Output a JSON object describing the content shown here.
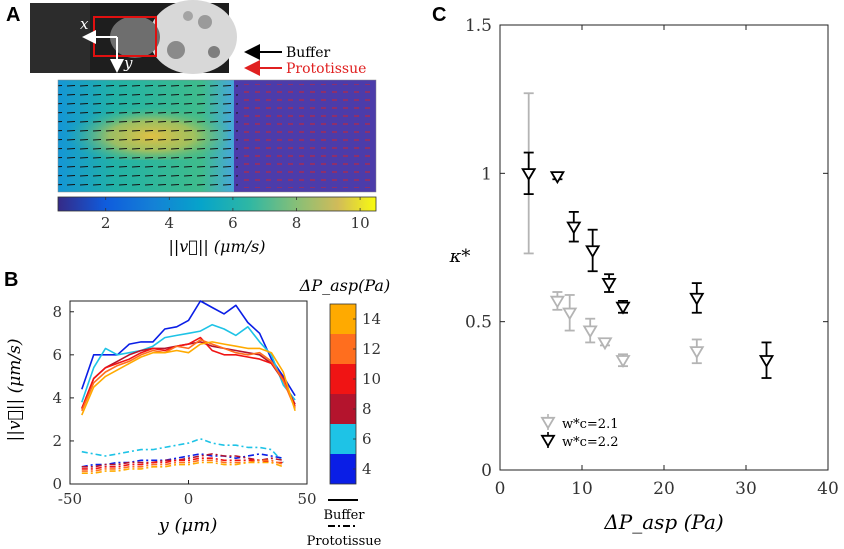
{
  "panels": {
    "a": "A",
    "b": "B",
    "c": "C"
  },
  "colors": {
    "black_marker": "#000000",
    "gray_marker": "#b4b4b4",
    "buffer_arrow": "#000000",
    "prototissue_arrow": "#e02020",
    "speed_4": "#0a1ee6",
    "speed_6": "#1ec3e6",
    "speed_8": "#b4142d",
    "speed_10": "#f01414",
    "speed_12": "#ff6e1e",
    "speed_14": "#ffaa00"
  },
  "panel_a": {
    "x_label": "x",
    "y_label": "y",
    "legend": {
      "buffer": "Buffer",
      "prototissue": "Prototissue"
    },
    "colorbar": {
      "ticks": [
        "2",
        "4",
        "6",
        "8",
        "10"
      ],
      "tick_values": [
        2,
        4,
        6,
        8,
        10
      ],
      "range": [
        0.5,
        10.5
      ],
      "label": "||v⃗|| (μm/s)"
    }
  },
  "panel_b": {
    "chart_data": {
      "type": "line",
      "title": "",
      "xlabel": "y (μm)",
      "ylabel": "||v⃗|| (μm/s)",
      "xlim": [
        -50,
        50
      ],
      "ylim": [
        0,
        8.5
      ],
      "xticks": [
        "-50",
        "0",
        "50"
      ],
      "xtick_values": [
        -50,
        0,
        50
      ],
      "yticks": [
        "0",
        "2",
        "4",
        "6",
        "8"
      ],
      "ytick_values": [
        0,
        2,
        4,
        6,
        8
      ],
      "colorbar": {
        "label": "ΔP_asp(Pa)",
        "ticks": [
          "4",
          "6",
          "8",
          "10",
          "12",
          "14"
        ],
        "tick_values": [
          4,
          6,
          8,
          10,
          12,
          14
        ],
        "range": [
          3,
          15
        ]
      },
      "legend": {
        "buffer": "Buffer",
        "prototissue": "Prototissue"
      },
      "x": [
        -45,
        -40,
        -35,
        -30,
        -25,
        -20,
        -15,
        -10,
        -5,
        0,
        5,
        10,
        15,
        20,
        25,
        30,
        35,
        40,
        45
      ],
      "series": [
        {
          "name": "Buffer 4 Pa",
          "dp": 4,
          "style": "solid",
          "color_key": "speed_4",
          "values": [
            4.4,
            6.0,
            6.0,
            6.0,
            6.5,
            6.6,
            6.6,
            7.2,
            7.3,
            7.6,
            8.5,
            8.2,
            7.9,
            8.3,
            7.5,
            7.0,
            5.8,
            5.0,
            4.1
          ]
        },
        {
          "name": "Buffer 6 Pa",
          "dp": 6,
          "style": "solid",
          "color_key": "speed_6",
          "values": [
            3.8,
            5.4,
            6.3,
            6.0,
            6.1,
            6.2,
            6.4,
            6.8,
            6.9,
            7.0,
            7.1,
            7.4,
            7.2,
            6.9,
            7.3,
            6.6,
            6.0,
            4.6,
            3.9
          ]
        },
        {
          "name": "Buffer 8 Pa",
          "dp": 8,
          "style": "solid",
          "color_key": "speed_8",
          "values": [
            3.5,
            4.9,
            5.4,
            5.7,
            6.0,
            6.2,
            6.3,
            6.3,
            6.4,
            6.5,
            6.6,
            6.4,
            6.3,
            6.2,
            6.1,
            6.0,
            5.6,
            4.8,
            3.7
          ]
        },
        {
          "name": "Buffer 10 Pa",
          "dp": 10,
          "style": "solid",
          "color_key": "speed_10",
          "values": [
            3.5,
            4.9,
            5.4,
            5.6,
            5.8,
            6.1,
            6.3,
            6.2,
            6.4,
            6.5,
            6.8,
            6.2,
            6.0,
            6.0,
            5.9,
            5.8,
            5.6,
            4.9,
            3.6
          ]
        },
        {
          "name": "Buffer 12 Pa",
          "dp": 12,
          "style": "solid",
          "color_key": "speed_12",
          "values": [
            3.4,
            4.7,
            5.2,
            5.5,
            5.7,
            6.0,
            6.2,
            6.1,
            6.4,
            6.3,
            6.7,
            6.5,
            6.3,
            6.1,
            6.0,
            6.1,
            5.7,
            4.8,
            3.5
          ]
        },
        {
          "name": "Buffer 14 Pa",
          "dp": 14,
          "style": "solid",
          "color_key": "speed_14",
          "values": [
            3.2,
            4.5,
            5.0,
            5.3,
            5.6,
            5.9,
            6.1,
            6.1,
            6.2,
            6.1,
            6.5,
            6.6,
            6.5,
            6.4,
            6.3,
            6.3,
            6.1,
            5.2,
            3.4
          ]
        },
        {
          "name": "Prototissue 4 Pa",
          "dp": 4,
          "style": "dashdot",
          "color_key": "speed_4",
          "values": [
            0.8,
            0.9,
            0.9,
            1.0,
            1.0,
            1.1,
            1.1,
            1.1,
            1.2,
            1.3,
            1.4,
            1.3,
            1.3,
            1.2,
            1.3,
            1.4,
            1.3,
            1.2,
            null
          ]
        },
        {
          "name": "Prototissue 6 Pa",
          "dp": 6,
          "style": "dashdot",
          "color_key": "speed_6",
          "values": [
            1.5,
            1.4,
            1.3,
            1.4,
            1.5,
            1.6,
            1.6,
            1.7,
            1.8,
            1.9,
            2.1,
            1.9,
            1.8,
            1.8,
            1.7,
            1.7,
            1.6,
            1.0,
            null
          ]
        },
        {
          "name": "Prototissue 8 Pa",
          "dp": 8,
          "style": "dashdot",
          "color_key": "speed_8",
          "values": [
            0.8,
            0.8,
            0.9,
            0.9,
            1.0,
            1.0,
            1.0,
            1.1,
            1.1,
            1.2,
            1.3,
            1.4,
            1.3,
            1.3,
            1.2,
            1.1,
            1.2,
            1.1,
            null
          ]
        },
        {
          "name": "Prototissue 10 Pa",
          "dp": 10,
          "style": "dashdot",
          "color_key": "speed_10",
          "values": [
            0.7,
            0.7,
            0.8,
            0.8,
            0.9,
            0.9,
            1.0,
            1.0,
            1.1,
            1.1,
            1.2,
            1.2,
            1.1,
            1.1,
            1.1,
            1.1,
            1.0,
            1.0,
            null
          ]
        },
        {
          "name": "Prototissue 12 Pa",
          "dp": 12,
          "style": "dashdot",
          "color_key": "speed_12",
          "values": [
            0.6,
            0.6,
            0.7,
            0.7,
            0.8,
            0.8,
            0.9,
            0.9,
            1.0,
            1.0,
            1.1,
            1.1,
            1.0,
            1.0,
            1.0,
            1.1,
            1.1,
            0.9,
            null
          ]
        },
        {
          "name": "Prototissue 14 Pa",
          "dp": 14,
          "style": "dashdot",
          "color_key": "speed_14",
          "values": [
            0.5,
            0.5,
            0.6,
            0.6,
            0.7,
            0.7,
            0.8,
            0.8,
            0.9,
            0.9,
            1.0,
            1.0,
            0.9,
            0.9,
            1.0,
            1.0,
            1.0,
            0.8,
            null
          ]
        }
      ]
    }
  },
  "panel_c": {
    "chart_data": {
      "type": "scatter",
      "title": "",
      "xlabel": "ΔP_asp (Pa)",
      "ylabel": "κ*",
      "xlim": [
        0,
        40
      ],
      "ylim": [
        0,
        1.5
      ],
      "xticks": [
        "0",
        "10",
        "20",
        "30",
        "40"
      ],
      "xtick_values": [
        0,
        10,
        20,
        30,
        40
      ],
      "yticks": [
        "0",
        "0.5",
        "1",
        "1.5"
      ],
      "ytick_values": [
        0,
        0.5,
        1,
        1.5
      ],
      "legend_position": "bottom-left",
      "series": [
        {
          "name": "w_c*=2.1",
          "legend_label": "w*c=2.1",
          "color_key": "gray_marker",
          "points": [
            {
              "x": 3.5,
              "y": 1.0,
              "err": 0.27
            },
            {
              "x": 7.0,
              "y": 0.57,
              "err": 0.03
            },
            {
              "x": 8.5,
              "y": 0.53,
              "err": 0.06
            },
            {
              "x": 11.0,
              "y": 0.47,
              "err": 0.04
            },
            {
              "x": 12.8,
              "y": 0.43,
              "err": 0.01
            },
            {
              "x": 15.0,
              "y": 0.37,
              "err": 0.02
            },
            {
              "x": 24.0,
              "y": 0.4,
              "err": 0.04
            }
          ]
        },
        {
          "name": "w_c*=2.2",
          "legend_label": "w*c=2.2",
          "color_key": "black_marker",
          "points": [
            {
              "x": 3.5,
              "y": 1.0,
              "err": 0.07
            },
            {
              "x": 7.0,
              "y": 0.99,
              "err": 0.01
            },
            {
              "x": 9.0,
              "y": 0.82,
              "err": 0.05
            },
            {
              "x": 11.3,
              "y": 0.74,
              "err": 0.07
            },
            {
              "x": 13.3,
              "y": 0.63,
              "err": 0.03
            },
            {
              "x": 15.0,
              "y": 0.55,
              "err": 0.02
            },
            {
              "x": 24.0,
              "y": 0.58,
              "err": 0.05
            },
            {
              "x": 32.5,
              "y": 0.37,
              "err": 0.06
            }
          ]
        }
      ]
    }
  }
}
